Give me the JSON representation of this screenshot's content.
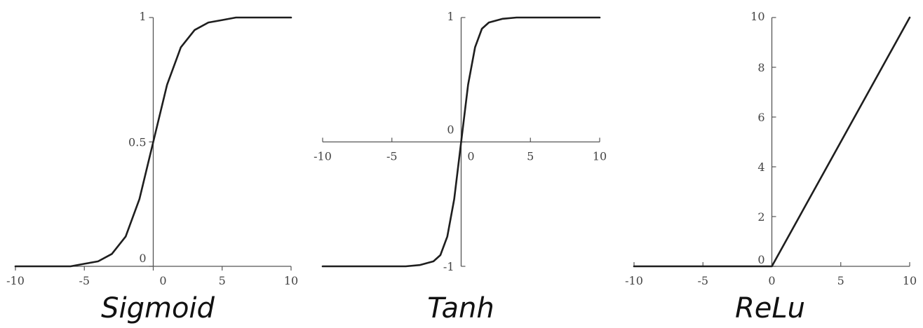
{
  "chart_data": [
    {
      "type": "line",
      "title": "Sigmoid",
      "xlabel": "",
      "ylabel": "",
      "xlim": [
        -10,
        10
      ],
      "ylim": [
        0,
        1
      ],
      "x_ticks": [
        -10,
        -5,
        0,
        5,
        10
      ],
      "x_tick_labels": [
        "-10",
        "-5",
        "0",
        "5",
        "10"
      ],
      "y_ticks": [
        0,
        0.5,
        1
      ],
      "y_tick_labels": [
        "0",
        "0.5",
        "1"
      ],
      "grid": false,
      "series": [
        {
          "x": [
            -10,
            -8,
            -6,
            -5,
            -4,
            -3,
            -2,
            -1,
            0,
            1,
            2,
            3,
            4,
            5,
            6,
            8,
            10
          ],
          "values": [
            0.0,
            0.0,
            0.0,
            0.01,
            0.02,
            0.05,
            0.12,
            0.27,
            0.5,
            0.73,
            0.88,
            0.95,
            0.98,
            0.99,
            1.0,
            1.0,
            1.0
          ]
        }
      ]
    },
    {
      "type": "line",
      "title": "Tanh",
      "xlabel": "",
      "ylabel": "",
      "xlim": [
        -10,
        10
      ],
      "ylim": [
        -1,
        1
      ],
      "x_ticks": [
        -10,
        -5,
        0,
        5,
        10
      ],
      "x_tick_labels": [
        "-10",
        "-5",
        "0",
        "5",
        "10"
      ],
      "y_ticks": [
        -1,
        0,
        1
      ],
      "y_tick_labels": [
        "-1",
        "0",
        "1"
      ],
      "grid": false,
      "series": [
        {
          "x": [
            -10,
            -6,
            -4,
            -3,
            -2,
            -1.5,
            -1,
            -0.5,
            0,
            0.5,
            1,
            1.5,
            2,
            3,
            4,
            6,
            10
          ],
          "values": [
            -1.0,
            -1.0,
            -1.0,
            -0.99,
            -0.96,
            -0.91,
            -0.76,
            -0.46,
            0.0,
            0.46,
            0.76,
            0.91,
            0.96,
            0.99,
            1.0,
            1.0,
            1.0
          ]
        }
      ]
    },
    {
      "type": "line",
      "title": "ReLu",
      "xlabel": "",
      "ylabel": "",
      "xlim": [
        -10,
        10
      ],
      "ylim": [
        0,
        10
      ],
      "x_ticks": [
        -10,
        -5,
        0,
        5,
        10
      ],
      "x_tick_labels": [
        "-10",
        "-5",
        "0",
        "5",
        "10"
      ],
      "y_ticks": [
        0,
        2,
        4,
        6,
        8,
        10
      ],
      "y_tick_labels": [
        "0",
        "2",
        "4",
        "6",
        "8",
        "10"
      ],
      "grid": false,
      "series": [
        {
          "x": [
            -10,
            0,
            10
          ],
          "values": [
            0,
            0,
            10
          ]
        }
      ]
    }
  ]
}
